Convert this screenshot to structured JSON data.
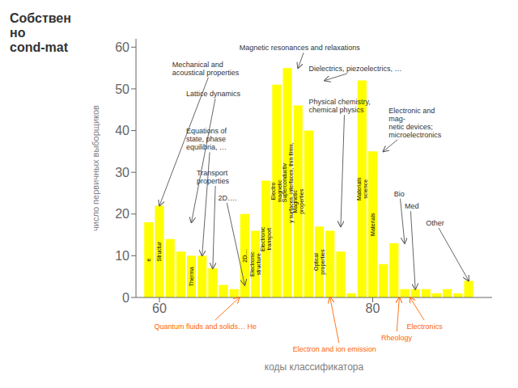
{
  "chart_data": {
    "type": "bar",
    "title": "Собствен\nно\ncond-mat",
    "xlabel": "коды классификатора",
    "ylabel": "число первичных выборщиков",
    "color": "#FFFF00",
    "grid": false,
    "xlim": [
      57.8,
      91.2
    ],
    "xticks": [
      60,
      80
    ],
    "ylim": [
      0,
      62
    ],
    "yticks": [
      0,
      10,
      20,
      30,
      40,
      50,
      60
    ],
    "x": [
      59,
      60,
      61,
      62,
      63,
      64,
      65,
      66,
      67,
      68,
      69,
      70,
      71,
      72,
      73,
      74,
      75,
      76,
      77,
      78,
      79,
      80,
      81,
      82,
      83,
      84,
      85,
      86,
      87,
      88,
      89
    ],
    "values": [
      18,
      22,
      14,
      11,
      10,
      10,
      7,
      3,
      2,
      20,
      16,
      28,
      51,
      55,
      46,
      40,
      17,
      16,
      11,
      1,
      52,
      35,
      8,
      13,
      2,
      2,
      2,
      1,
      2,
      1,
      4
    ],
    "bar_labels": [
      "e",
      "Structur",
      null,
      null,
      "Therma",
      null,
      null,
      null,
      null,
      "2D....",
      "Electronic\nstructure",
      "Electronic\ntransport",
      "Electro\nmagnetic",
      "Superconductiv\ny surfaces, interfaces, thin films,",
      "Magnetic\nproperties",
      null,
      "Optical\nproperties",
      null,
      null,
      null,
      "Materials\nscience",
      "Materials",
      null,
      null,
      null,
      null,
      null,
      null,
      null,
      null,
      null
    ],
    "annotations": [
      {
        "text": "Mechanical and\nacoustical properties",
        "x": 60,
        "y": 22
      },
      {
        "text": "Lattice dynamics",
        "x": 63,
        "y": 18
      },
      {
        "text": "Equations of\nstate, phase\nequilibria, …",
        "x": 64,
        "y": 10
      },
      {
        "text": "Transport\nproperties",
        "x": 65,
        "y": 7
      },
      {
        "text": "2D….",
        "x": 68,
        "y": 3
      },
      {
        "text": "Magnetic resonances and relaxations",
        "x": 73,
        "y": 55
      },
      {
        "text": "Dielectrics, piezoelectrics, …",
        "x": 75.5,
        "y": 52
      },
      {
        "text": "Physical chemistry,\nchemical physics",
        "x": 77,
        "y": 17
      },
      {
        "text": "Electronic and\nmag-\nnetic devices;\nmicroelectronics",
        "x": 81,
        "y": 35
      },
      {
        "text": "Bio",
        "x": 83,
        "y": 13
      },
      {
        "text": "Med",
        "x": 84,
        "y": 2
      },
      {
        "text": "Other",
        "x": 89,
        "y": 4
      },
      {
        "text": "Quantum fluids and solids… He",
        "x": 67.5,
        "y": 0,
        "color": "#FF6600"
      },
      {
        "text": "Electron and ion emission",
        "x": 76.0,
        "y": 0,
        "color": "#FF6600"
      },
      {
        "text": "Rheology",
        "x": 82.5,
        "y": 0,
        "color": "#FF6600"
      },
      {
        "text": "Electronics",
        "x": 83.5,
        "y": 0,
        "color": "#FF6600"
      }
    ]
  }
}
